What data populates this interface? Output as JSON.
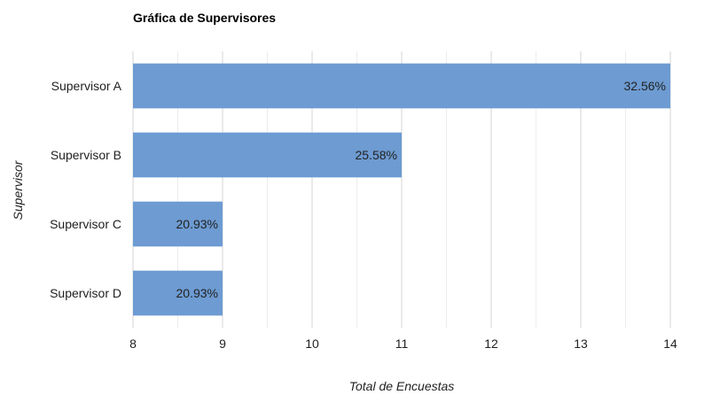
{
  "chart_data": {
    "type": "bar",
    "orientation": "horizontal",
    "title": "Gráfica de Supervisores",
    "xlabel": "Total de Encuestas",
    "ylabel": "Supervisor",
    "categories": [
      "Supervisor A",
      "Supervisor B",
      "Supervisor C",
      "Supervisor D"
    ],
    "values": [
      14,
      11,
      9,
      9
    ],
    "data_labels": [
      "32.56%",
      "25.58%",
      "20.93%",
      "20.93%"
    ],
    "xlim": [
      8,
      14
    ],
    "xticks": [
      "8",
      "9",
      "10",
      "11",
      "12",
      "13",
      "14"
    ],
    "grid": true,
    "bar_color": "#6d9bd2"
  }
}
